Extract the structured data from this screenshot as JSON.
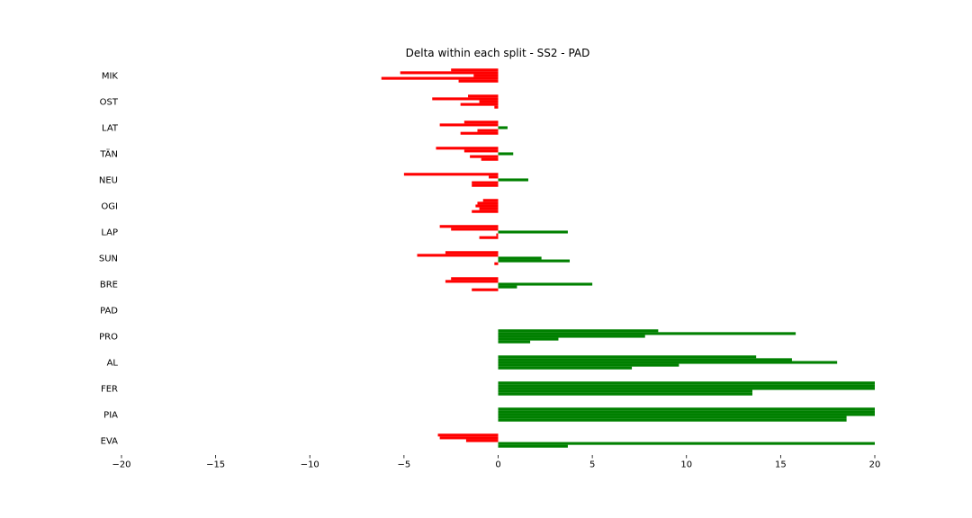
{
  "chart_data": {
    "type": "bar",
    "orientation": "horizontal",
    "title": "Delta within each split - SS2 - PAD",
    "xlabel": "",
    "ylabel": "",
    "xlim": [
      -20,
      20
    ],
    "x_ticks": [
      "−20",
      "−15",
      "−10",
      "−5",
      "0",
      "5",
      "10",
      "15",
      "20"
    ],
    "grid": false,
    "legend": "none",
    "colors": {
      "positive": "#008000",
      "negative": "#ff0000"
    },
    "categories": [
      "MIK",
      "OST",
      "LAT",
      "TÄN",
      "NEU",
      "OGI",
      "LAP",
      "SUN",
      "BRE",
      "PAD",
      "PRO",
      "AL",
      "FER",
      "PIA",
      "EVA"
    ],
    "deltas": [
      [
        -2.5,
        -5.2,
        -1.3,
        -6.2,
        -2.1
      ],
      [
        -1.6,
        -3.5,
        -1.0,
        -2.0,
        -0.2
      ],
      [
        -1.8,
        -3.1,
        0.5,
        -1.1,
        -2.0
      ],
      [
        -3.3,
        -1.8,
        0.8,
        -1.5,
        -0.9
      ],
      [
        -5.0,
        -0.5,
        1.6,
        -1.4,
        -1.4
      ],
      [
        -0.8,
        -1.1,
        -1.2,
        -1.0,
        -1.4
      ],
      [
        -3.1,
        -2.5,
        3.7,
        -0.1,
        -1.0
      ],
      [
        -2.8,
        -4.3,
        2.3,
        3.8,
        -0.2
      ],
      [
        -2.5,
        -2.8,
        5.0,
        1.0,
        -1.4
      ],
      [
        0,
        0,
        0,
        0,
        0
      ],
      [
        8.5,
        15.8,
        7.8,
        3.2,
        1.7
      ],
      [
        13.7,
        15.6,
        18.0,
        9.6,
        7.1
      ],
      [
        20.0,
        20.0,
        20.0,
        13.5,
        13.5
      ],
      [
        20.0,
        20.0,
        20.0,
        18.5,
        18.5
      ],
      [
        -3.2,
        -3.1,
        -1.7,
        20.0,
        3.7
      ]
    ]
  }
}
